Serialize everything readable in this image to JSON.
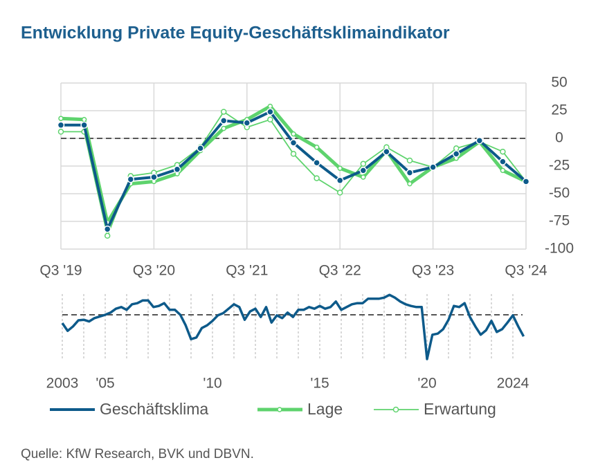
{
  "chart_data": [
    {
      "type": "line",
      "title": "Entwicklung Private Equity-Geschäftsklimaindikator",
      "categories": [
        "Q3 '19",
        null,
        null,
        null,
        "Q3 '20",
        null,
        null,
        null,
        "Q3 '21",
        null,
        null,
        null,
        "Q3 '22",
        null,
        null,
        null,
        "Q3 '23",
        null,
        null,
        null,
        "Q3 '24"
      ],
      "ylim": [
        -100,
        50
      ],
      "yticks": [
        50,
        25,
        0,
        -25,
        -50,
        -75,
        -100
      ],
      "grid": true,
      "zero_line": true,
      "series": [
        {
          "name": "Geschäftsklima",
          "color": "#0d5a8a",
          "values": [
            12,
            12,
            -82,
            -37,
            -35,
            -28,
            -9,
            16,
            14,
            24,
            -4,
            -22,
            -38,
            -29,
            -12,
            -31,
            -26,
            -14,
            -2,
            -21,
            -39
          ]
        },
        {
          "name": "Lage",
          "color": "#5ed36d",
          "values": [
            18,
            17,
            -76,
            -41,
            -39,
            -32,
            -11,
            9,
            17,
            29,
            4,
            -8,
            -27,
            -35,
            -11,
            -41,
            -26,
            -18,
            -3,
            -29,
            -39
          ]
        },
        {
          "name": "Erwartung",
          "color": "#5ed36d",
          "values": [
            6,
            6,
            -88,
            -34,
            -31,
            -24,
            -8,
            24,
            10,
            17,
            -14,
            -36,
            -49,
            -23,
            -8,
            -20,
            -26,
            -9,
            -3,
            -12,
            -39
          ]
        }
      ]
    },
    {
      "type": "line",
      "series": [
        {
          "name": "Geschäftsklima",
          "color": "#0d5a8a",
          "x": [
            2003,
            2003.25,
            2003.5,
            2003.75,
            2004,
            2004.25,
            2004.5,
            2004.75,
            2005,
            2005.25,
            2005.5,
            2005.75,
            2006,
            2006.25,
            2006.5,
            2006.75,
            2007,
            2007.25,
            2007.5,
            2007.75,
            2008,
            2008.25,
            2008.5,
            2008.75,
            2009,
            2009.25,
            2009.5,
            2009.75,
            2010,
            2010.25,
            2010.5,
            2010.75,
            2011,
            2011.25,
            2011.5,
            2011.75,
            2012,
            2012.25,
            2012.5,
            2012.75,
            2013,
            2013.25,
            2013.5,
            2013.75,
            2014,
            2014.25,
            2014.5,
            2014.75,
            2015,
            2015.25,
            2015.5,
            2015.75,
            2016,
            2016.25,
            2016.5,
            2016.75,
            2017,
            2017.25,
            2017.5,
            2017.75,
            2018,
            2018.25,
            2018.5,
            2018.75,
            2019,
            2019.25,
            2019.5,
            2019.75,
            2020,
            2020.25,
            2020.5,
            2020.75,
            2021,
            2021.25,
            2021.5,
            2021.75,
            2022,
            2022.25,
            2022.5,
            2022.75,
            2023,
            2023.25,
            2023.5,
            2023.75,
            2024,
            2024.25,
            2024.5
          ],
          "values": [
            -15,
            -29,
            -21,
            -10,
            -9,
            -12,
            -6,
            -3,
            0,
            4,
            11,
            14,
            9,
            19,
            21,
            26,
            26,
            14,
            16,
            21,
            9,
            9,
            0,
            -19,
            -44,
            -41,
            -24,
            -19,
            -11,
            -1,
            3,
            11,
            19,
            14,
            -9,
            6,
            11,
            -4,
            14,
            -14,
            -1,
            -6,
            4,
            -4,
            9,
            9,
            14,
            11,
            16,
            11,
            14,
            24,
            9,
            14,
            19,
            21,
            21,
            29,
            29,
            29,
            31,
            36,
            31,
            24,
            19,
            16,
            14,
            14,
            -80,
            -36,
            -34,
            -26,
            -9,
            16,
            14,
            21,
            -4,
            -21,
            -36,
            -28,
            -11,
            -31,
            -26,
            -14,
            -1,
            -21,
            -39
          ]
        }
      ],
      "xlim": [
        2003,
        2024.5
      ],
      "ylim": [
        -87.5,
        37.5
      ],
      "zero_line": true,
      "xticks": [
        {
          "value": 2003,
          "label": "2003"
        },
        {
          "value": 2005,
          "label": " '05"
        },
        {
          "value": 2010,
          "label": "'10"
        },
        {
          "value": 2015,
          "label": "'15"
        },
        {
          "value": 2020,
          "label": "'20"
        },
        2024
      ],
      "minor_xticks": [
        2004,
        2006,
        2007,
        2008,
        2009,
        2011,
        2012,
        2013,
        2014,
        2016,
        2017,
        2018,
        2019,
        2021,
        2022,
        2023
      ]
    }
  ],
  "source": "Quelle: KfW Research, BVK und DBVN."
}
